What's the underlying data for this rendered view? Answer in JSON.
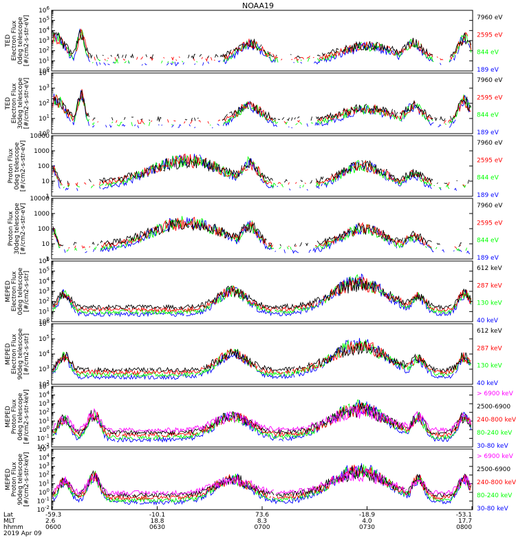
{
  "title": "NOAA19",
  "colors": {
    "c0": "#0000ff",
    "c1": "#00ff00",
    "c2": "#ff0000",
    "c3": "#000000",
    "c4": "#ff00ff"
  },
  "chart_data": {
    "type": "line",
    "title": "NOAA19",
    "panels": [
      {
        "ylabel": [
          "TED",
          "Electron Flux",
          "0deg telescope",
          "[#/cm2-s-str-eV]"
        ],
        "yscale": "log",
        "ylim": [
          1,
          1000000
        ],
        "yticks": [
          "10^0",
          "10^1",
          "10^2",
          "10^3",
          "10^4",
          "10^5",
          "10^6"
        ],
        "legend": [
          "7960 eV",
          "2595 eV",
          "844 eV",
          "189 eV"
        ],
        "legend_colors": [
          "#000000",
          "#ff0000",
          "#00ff00",
          "#0000ff"
        ]
      },
      {
        "ylabel": [
          "TED",
          "Electron Flux",
          "30deg telescope",
          "[#/cm2-s-str-eV]"
        ],
        "yscale": "log",
        "ylim": [
          1,
          100000
        ],
        "yticks": [
          "10^0",
          "10^1",
          "10^2",
          "10^3",
          "10^4"
        ],
        "legend": [
          "7960 eV",
          "2595 eV",
          "844 eV",
          "189 eV"
        ],
        "legend_colors": [
          "#000000",
          "#ff0000",
          "#00ff00",
          "#0000ff"
        ]
      },
      {
        "ylabel": [
          "Proton Flux",
          "0deg telescope",
          "[#/cm2-s-str-eV]"
        ],
        "yscale": "log",
        "ylim": [
          1,
          10000
        ],
        "yticks": [
          "1",
          "10",
          "100",
          "1000",
          "10000"
        ],
        "legend": [
          "7960 eV",
          "2595 eV",
          "844 eV",
          "189 eV"
        ],
        "legend_colors": [
          "#000000",
          "#ff0000",
          "#00ff00",
          "#0000ff"
        ]
      },
      {
        "ylabel": [
          "Proton Flux",
          "30deg telescope",
          "[#/cm2-s-str-eV]"
        ],
        "yscale": "log",
        "ylim": [
          1,
          10000
        ],
        "yticks": [
          "1",
          "10",
          "100",
          "1000",
          "10000"
        ],
        "legend": [
          "7960 eV",
          "2595 eV",
          "844 eV",
          "189 eV"
        ],
        "legend_colors": [
          "#000000",
          "#ff0000",
          "#00ff00",
          "#0000ff"
        ]
      },
      {
        "ylabel": [
          "MEPED",
          "Electron Flux",
          "0deg telescope",
          "[#/cm2-s-str]"
        ],
        "yscale": "log",
        "ylim": [
          1,
          1000000
        ],
        "yticks": [
          "10^0",
          "10^1",
          "10^2",
          "10^3",
          "10^4",
          "10^5",
          "10^6"
        ],
        "legend": [
          "612 keV",
          "287 keV",
          "130 keV",
          "40 keV"
        ],
        "legend_colors": [
          "#000000",
          "#ff0000",
          "#00ff00",
          "#0000ff"
        ]
      },
      {
        "ylabel": [
          "MEPED",
          "Electron Flux",
          "90deg telescope",
          "[#/cm2-s-str]"
        ],
        "yscale": "log",
        "ylim": [
          100,
          1000000
        ],
        "yticks": [
          "10^2",
          "10^3",
          "10^4",
          "10^5",
          "10^6"
        ],
        "legend": [
          "612 keV",
          "287 keV",
          "130 keV",
          "40 keV"
        ],
        "legend_colors": [
          "#000000",
          "#ff0000",
          "#00ff00",
          "#0000ff"
        ]
      },
      {
        "ylabel": [
          "MEPED",
          "Proton Flux",
          "0deg telescope",
          "[#/cm2-s-str-keV]"
        ],
        "yscale": "log",
        "ylim": [
          0.01,
          100000
        ],
        "yticks": [
          "10^-2",
          "10^-1",
          "10^0",
          "10^1",
          "10^2",
          "10^3",
          "10^4",
          "10^5"
        ],
        "legend": [
          "> 6900 keV",
          "2500-6900",
          "240-800 keV",
          "80-240 keV",
          "30-80 keV"
        ],
        "legend_colors": [
          "#ff00ff",
          "#000000",
          "#ff0000",
          "#00ff00",
          "#0000ff"
        ]
      },
      {
        "ylabel": [
          "MEPED",
          "Proton Flux",
          "90deg telescope",
          "[#/cm2-s-str-keV]"
        ],
        "yscale": "log",
        "ylim": [
          0.01,
          100000
        ],
        "yticks": [
          "10^-2",
          "10^-1",
          "10^0",
          "10^1",
          "10^2",
          "10^3",
          "10^4",
          "10^5"
        ],
        "legend": [
          "> 6900 keV",
          "2500-6900",
          "240-800 keV",
          "80-240 keV",
          "30-80 keV"
        ],
        "legend_colors": [
          "#ff00ff",
          "#000000",
          "#ff0000",
          "#00ff00",
          "#0000ff"
        ]
      }
    ],
    "xaxis": {
      "row_labels": [
        "Lat",
        "MLT",
        "hhmm"
      ],
      "date": "2019 Apr 09",
      "ticks": [
        {
          "lat": "-59.3",
          "mlt": "2.6",
          "hhmm": "0600"
        },
        {
          "lat": "-10.1",
          "mlt": "18.8",
          "hhmm": "0630"
        },
        {
          "lat": "73.6",
          "mlt": "8.3",
          "hhmm": "0700"
        },
        {
          "lat": "-18.9",
          "mlt": "4.0",
          "hhmm": "0730"
        },
        {
          "lat": "-53.1",
          "mlt": "17.7",
          "hhmm": "0800"
        }
      ]
    }
  }
}
